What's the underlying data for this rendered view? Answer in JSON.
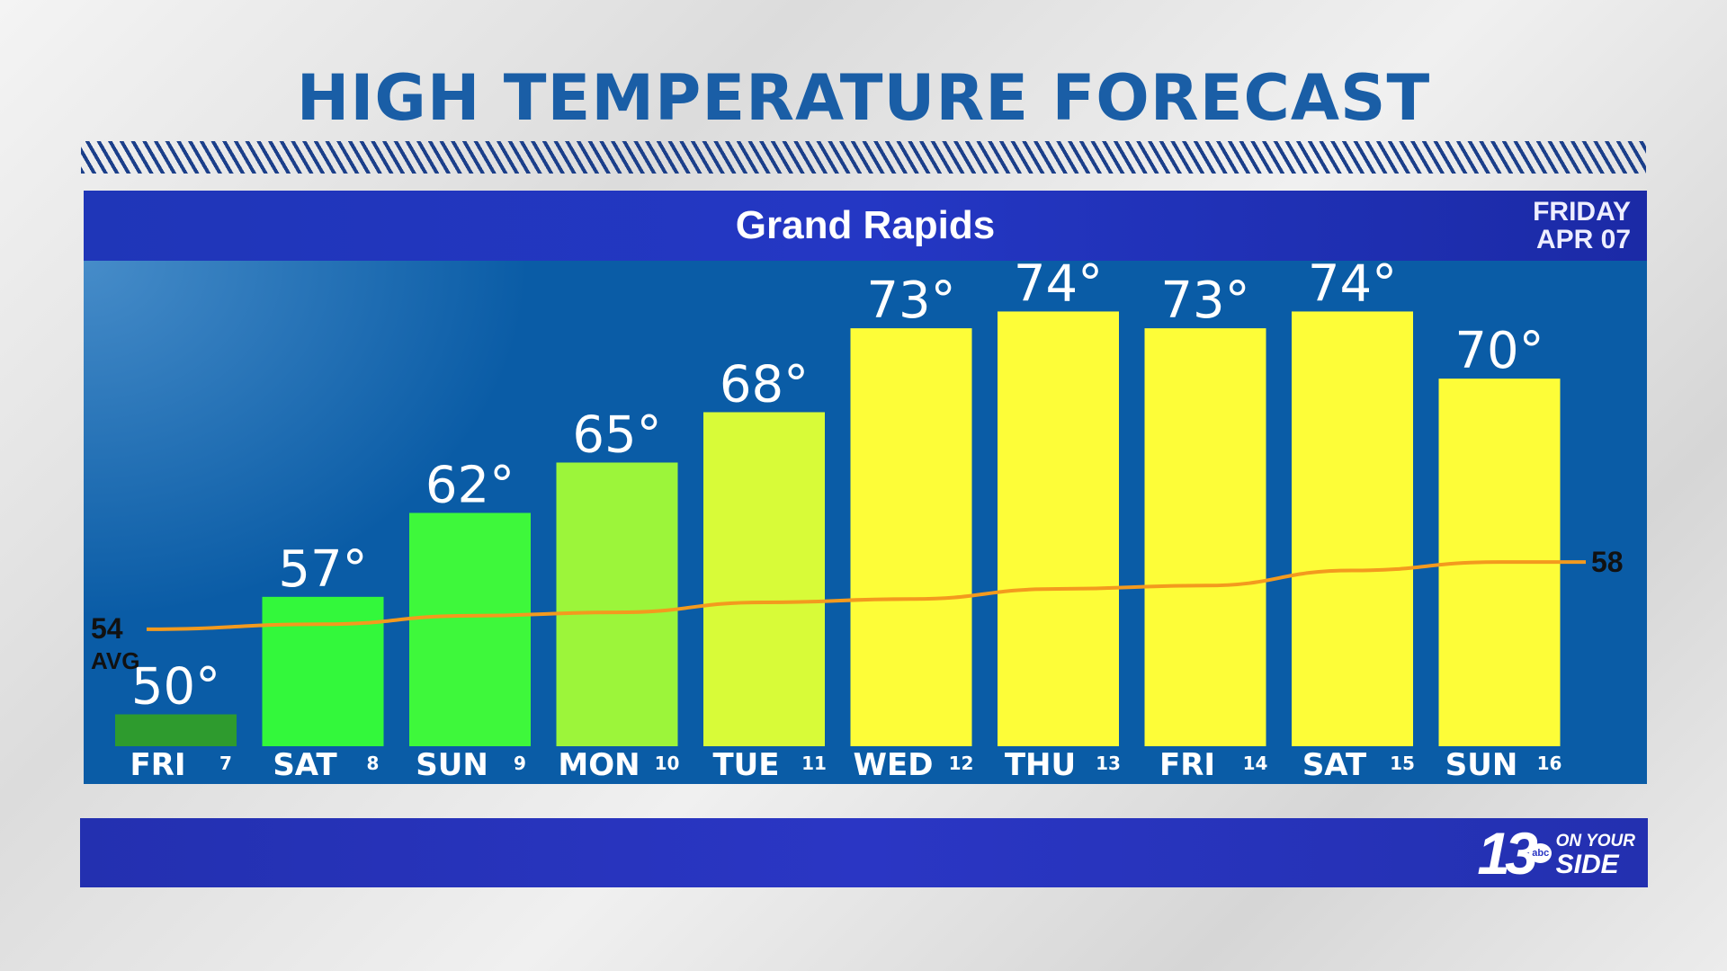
{
  "title": "HIGH TEMPERATURE FORECAST",
  "location": "Grand Rapids",
  "date_line1": "FRIDAY",
  "date_line2": "APR 07",
  "logo": {
    "number": "13",
    "network": "abc",
    "tagline1": "ON YOUR",
    "tagline2": "SIDE"
  },
  "chart_data": {
    "type": "bar",
    "title": "HIGH TEMPERATURE FORECAST",
    "categories": [
      {
        "day": "FRI",
        "date": "7"
      },
      {
        "day": "SAT",
        "date": "8"
      },
      {
        "day": "SUN",
        "date": "9"
      },
      {
        "day": "MON",
        "date": "10"
      },
      {
        "day": "TUE",
        "date": "11"
      },
      {
        "day": "WED",
        "date": "12"
      },
      {
        "day": "THU",
        "date": "13"
      },
      {
        "day": "FRI",
        "date": "14"
      },
      {
        "day": "SAT",
        "date": "15"
      },
      {
        "day": "SUN",
        "date": "16"
      }
    ],
    "values": [
      50,
      57,
      62,
      65,
      68,
      73,
      74,
      73,
      74,
      70
    ],
    "value_labels": [
      "50°",
      "57°",
      "62°",
      "65°",
      "68°",
      "73°",
      "74°",
      "73°",
      "74°",
      "70°"
    ],
    "bar_colors": [
      "#2e9b2e",
      "#33f83b",
      "#3ef83b",
      "#9cf53a",
      "#d8fb38",
      "#fdfd38",
      "#fdfd38",
      "#fdfd38",
      "#fdfd38",
      "#fdfd38"
    ],
    "average_series": {
      "values": [
        54,
        54.3,
        54.8,
        55,
        55.6,
        55.8,
        56.4,
        56.6,
        57.5,
        58
      ],
      "start_label": "54",
      "start_sublabel": "AVG",
      "end_label": "58",
      "color": "#f39a1e"
    },
    "ylim": [
      48,
      76
    ]
  }
}
